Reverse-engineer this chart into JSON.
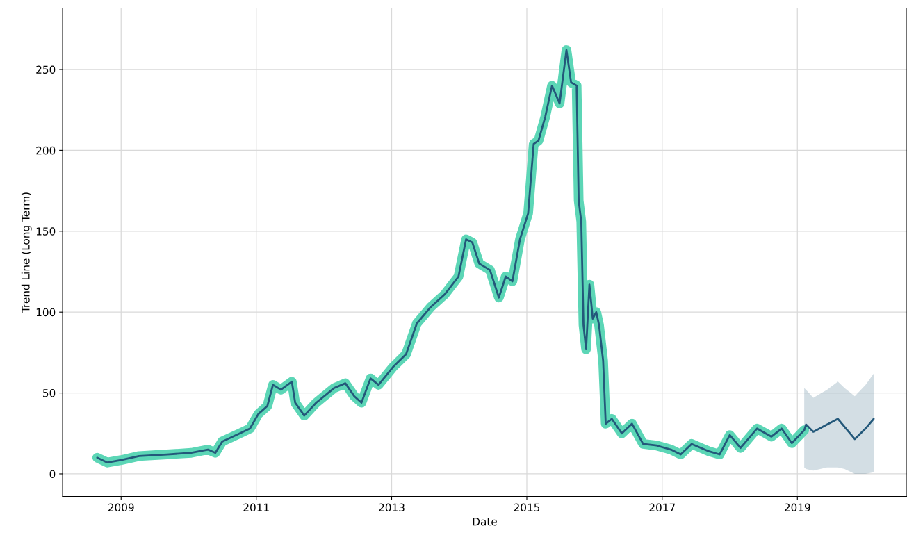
{
  "chart_data": {
    "type": "line",
    "xlabel": "Date",
    "ylabel": "Trend Line (Long Term)",
    "xlim": [
      "2008-02-20",
      "2020-08-15"
    ],
    "xticks": [
      {
        "value": "2009-01-01",
        "label": "2009"
      },
      {
        "value": "2011-01-01",
        "label": "2011"
      },
      {
        "value": "2013-01-01",
        "label": "2013"
      },
      {
        "value": "2015-01-01",
        "label": "2015"
      },
      {
        "value": "2017-01-01",
        "label": "2017"
      },
      {
        "value": "2019-01-01",
        "label": "2019"
      }
    ],
    "ylim": [
      -14,
      288
    ],
    "yticks": [
      0,
      50,
      100,
      150,
      200,
      250
    ],
    "grid": true,
    "line_style": "solid",
    "series": [
      {
        "color": "#5cd6b6",
        "x": [
          "2008-08-25",
          "2008-10-19",
          "2009-01-01",
          "2009-04-08",
          "2009-09-06",
          "2010-01-15",
          "2010-04-15",
          "2010-05-25",
          "2010-07-01",
          "2010-10-04",
          "2010-11-28",
          "2011-01-12",
          "2011-03-02",
          "2011-04-01",
          "2011-05-14",
          "2011-07-12",
          "2011-07-30",
          "2011-09-17",
          "2011-11-21",
          "2012-02-25",
          "2012-04-26",
          "2012-06-13",
          "2012-07-22",
          "2012-09-09",
          "2012-10-22",
          "2013-01-08",
          "2013-03-20",
          "2013-05-17",
          "2013-07-30",
          "2013-10-15",
          "2013-12-28",
          "2014-02-07",
          "2014-03-13",
          "2014-04-19",
          "2014-06-16",
          "2014-08-03",
          "2014-09-09",
          "2014-10-15",
          "2014-11-25",
          "2015-01-08",
          "2015-02-07",
          "2015-03-05",
          "2015-04-11",
          "2015-05-17",
          "2015-06-27",
          "2015-08-03",
          "2015-08-28",
          "2015-09-27",
          "2015-10-08",
          "2015-10-22",
          "2015-11-03",
          "2015-11-17",
          "2015-12-05",
          "2015-12-23",
          "2016-01-11",
          "2016-01-26",
          "2016-02-17",
          "2016-03-02",
          "2016-04-04",
          "2016-05-28",
          "2016-07-22",
          "2016-09-20",
          "2016-12-02",
          "2017-02-17",
          "2017-04-11",
          "2017-06-09",
          "2017-09-09",
          "2017-11-07",
          "2018-01-01",
          "2018-02-28",
          "2018-05-28",
          "2018-08-14",
          "2018-10-08",
          "2018-12-02",
          "2019-02-07"
        ],
        "values": [
          10,
          7,
          8.5,
          11,
          12,
          13,
          15,
          13,
          20,
          25,
          28,
          37,
          42,
          55,
          52,
          57,
          44,
          36,
          44,
          53,
          56,
          48,
          44,
          59,
          55,
          66,
          74,
          93,
          103,
          111,
          122,
          145,
          143,
          130,
          126,
          109,
          122,
          119,
          145,
          161,
          204,
          206,
          221,
          240,
          229,
          262,
          242,
          240,
          169,
          156,
          92,
          77,
          117,
          96,
          100,
          92,
          70,
          31,
          34,
          25,
          31,
          18.5,
          17.5,
          15,
          12,
          18.5,
          14,
          12,
          24,
          16,
          28,
          23,
          28,
          19,
          27
        ]
      },
      {
        "color": "#23587a",
        "x": [
          "2008-08-25",
          "2008-10-19",
          "2009-01-01",
          "2009-04-08",
          "2009-09-06",
          "2010-01-15",
          "2010-04-15",
          "2010-05-25",
          "2010-07-01",
          "2010-10-04",
          "2010-11-28",
          "2011-01-12",
          "2011-03-02",
          "2011-04-01",
          "2011-05-14",
          "2011-07-12",
          "2011-07-30",
          "2011-09-17",
          "2011-11-21",
          "2012-02-25",
          "2012-04-26",
          "2012-06-13",
          "2012-07-22",
          "2012-09-09",
          "2012-10-22",
          "2013-01-08",
          "2013-03-20",
          "2013-05-17",
          "2013-07-30",
          "2013-10-15",
          "2013-12-28",
          "2014-02-07",
          "2014-03-13",
          "2014-04-19",
          "2014-06-16",
          "2014-08-03",
          "2014-09-09",
          "2014-10-15",
          "2014-11-25",
          "2015-01-08",
          "2015-02-07",
          "2015-03-05",
          "2015-04-11",
          "2015-05-17",
          "2015-06-27",
          "2015-08-03",
          "2015-08-28",
          "2015-09-27",
          "2015-10-08",
          "2015-10-22",
          "2015-11-03",
          "2015-11-17",
          "2015-12-05",
          "2015-12-23",
          "2016-01-11",
          "2016-01-26",
          "2016-02-17",
          "2016-03-02",
          "2016-04-04",
          "2016-05-28",
          "2016-07-22",
          "2016-09-20",
          "2016-12-02",
          "2017-02-17",
          "2017-04-11",
          "2017-06-09",
          "2017-09-09",
          "2017-11-07",
          "2018-01-01",
          "2018-02-28",
          "2018-05-28",
          "2018-08-14",
          "2018-10-08",
          "2018-12-02",
          "2019-02-07",
          "2019-02-17",
          "2019-03-28",
          "2019-06-10",
          "2019-08-08",
          "2019-09-13",
          "2019-11-07",
          "2020-01-04",
          "2020-02-17"
        ],
        "values": [
          10,
          7,
          8.5,
          11,
          12,
          13,
          15,
          13,
          20,
          25,
          28,
          37,
          42,
          55,
          52,
          57,
          44,
          36,
          44,
          53,
          56,
          48,
          44,
          59,
          55,
          66,
          74,
          93,
          103,
          111,
          122,
          145,
          143,
          130,
          126,
          109,
          122,
          119,
          145,
          161,
          204,
          206,
          221,
          240,
          229,
          262,
          242,
          240,
          169,
          156,
          92,
          77,
          117,
          96,
          100,
          92,
          70,
          31,
          34,
          25,
          31,
          18.5,
          17.5,
          15,
          12,
          18.5,
          14,
          12,
          24,
          16,
          28,
          23,
          28,
          19,
          27,
          30.5,
          26,
          30.5,
          34,
          29,
          21.5,
          28,
          34
        ],
        "lower": [
          null,
          null,
          null,
          null,
          null,
          null,
          null,
          null,
          null,
          null,
          null,
          null,
          null,
          null,
          null,
          null,
          null,
          null,
          null,
          null,
          null,
          null,
          null,
          null,
          null,
          null,
          null,
          null,
          null,
          null,
          null,
          null,
          null,
          null,
          null,
          null,
          null,
          null,
          null,
          null,
          null,
          null,
          null,
          null,
          null,
          null,
          null,
          null,
          null,
          null,
          null,
          null,
          null,
          null,
          null,
          null,
          null,
          null,
          null,
          null,
          null,
          null,
          null,
          null,
          null,
          null,
          null,
          null,
          null,
          null,
          null,
          null,
          null,
          null,
          4,
          3,
          2,
          4,
          4,
          3,
          0,
          0,
          1
        ],
        "upper": [
          null,
          null,
          null,
          null,
          null,
          null,
          null,
          null,
          null,
          null,
          null,
          null,
          null,
          null,
          null,
          null,
          null,
          null,
          null,
          null,
          null,
          null,
          null,
          null,
          null,
          null,
          null,
          null,
          null,
          null,
          null,
          null,
          null,
          null,
          null,
          null,
          null,
          null,
          null,
          null,
          null,
          null,
          null,
          null,
          null,
          null,
          null,
          null,
          null,
          null,
          null,
          null,
          null,
          null,
          null,
          null,
          null,
          null,
          null,
          null,
          null,
          null,
          null,
          null,
          null,
          null,
          null,
          null,
          null,
          null,
          null,
          null,
          null,
          null,
          53,
          52,
          47,
          52,
          57,
          53,
          48,
          55,
          62
        ]
      }
    ]
  }
}
